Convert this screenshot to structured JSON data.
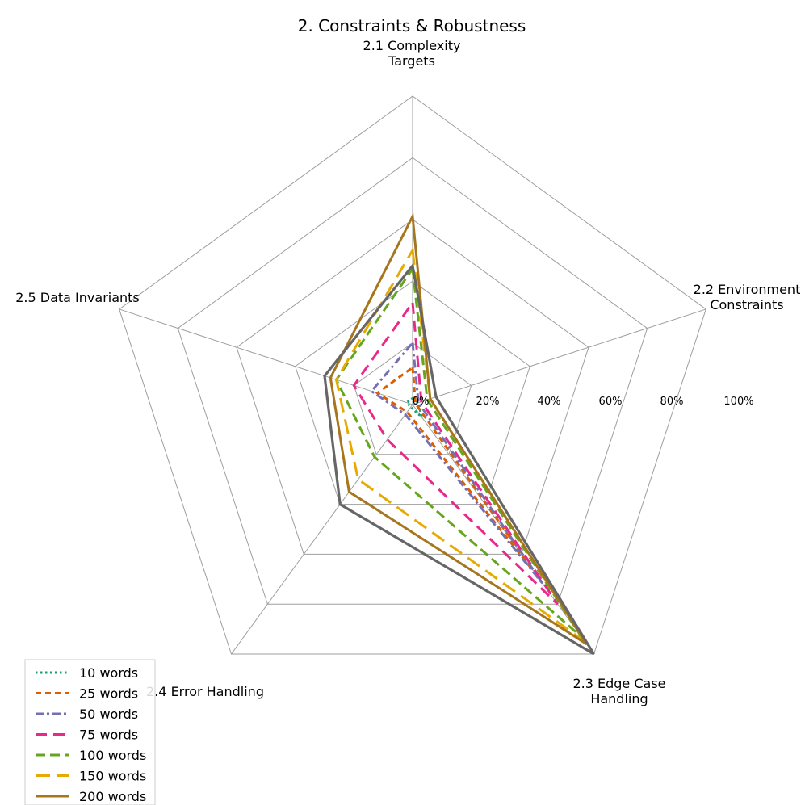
{
  "chart_data": {
    "type": "radar",
    "title": "2. Constraints & Robustness",
    "axes": [
      [
        "2.1 Complexity",
        "Targets"
      ],
      [
        "2.2 Environment",
        "Constraints"
      ],
      [
        "2.3 Edge Case",
        "Handling"
      ],
      [
        "2.4 Error Handling"
      ],
      [
        "2.5 Data Invariants"
      ]
    ],
    "rlim": [
      0,
      100
    ],
    "tick_values": [
      0,
      20,
      40,
      60,
      80,
      100
    ],
    "tick_labels": [
      "0%",
      "20%",
      "40%",
      "60%",
      "80%",
      "100%"
    ],
    "grid": true,
    "legend_position": "bottom-left",
    "series": [
      {
        "name": "10 words",
        "color": "#1b9e77",
        "dash": "dotted",
        "values": [
          2,
          2,
          5,
          1,
          2
        ]
      },
      {
        "name": "25 words",
        "color": "#d95f02",
        "dash": "dashed",
        "values": [
          12,
          1,
          68,
          3,
          12
        ]
      },
      {
        "name": "50 words",
        "color": "#7570b3",
        "dash": "dashdot",
        "values": [
          20,
          2,
          72,
          4,
          14
        ]
      },
      {
        "name": "75 words",
        "color": "#e7298a",
        "dash": "longdash",
        "values": [
          33,
          3,
          80,
          14,
          20
        ]
      },
      {
        "name": "100 words",
        "color": "#66a61e",
        "dash": "dashed2",
        "values": [
          44,
          5,
          93,
          21,
          26
        ]
      },
      {
        "name": "150 words",
        "color": "#e6ab02",
        "dash": "longdash2",
        "values": [
          50,
          6,
          95,
          30,
          26
        ]
      },
      {
        "name": "200 words",
        "color": "#a6761d",
        "dash": "solid",
        "values": [
          61,
          6,
          96,
          35,
          28
        ]
      },
      {
        "name": "",
        "color": "#666666",
        "dash": "solid",
        "values": [
          45,
          8,
          100,
          40,
          30
        ]
      }
    ]
  }
}
